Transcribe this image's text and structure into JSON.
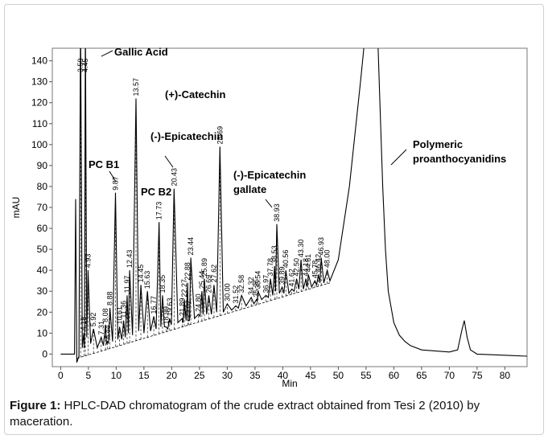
{
  "chart_data": {
    "type": "line",
    "xlabel": "Min",
    "ylabel": "mAU",
    "xlim": [
      -1.5,
      84
    ],
    "ylim": [
      -6,
      146
    ],
    "xticks": [
      0,
      5,
      10,
      15,
      20,
      25,
      30,
      35,
      40,
      45,
      50,
      55,
      60,
      65,
      70,
      75,
      80
    ],
    "yticks": [
      0,
      10,
      20,
      30,
      40,
      50,
      60,
      70,
      80,
      90,
      100,
      110,
      120,
      130,
      140
    ],
    "series": [
      {
        "color": "#000000",
        "x": [
          0,
          2.5,
          2.7,
          2.9,
          3.3,
          3.59,
          3.9,
          4.18,
          4.3,
          4.45,
          4.7,
          4.93,
          5.4,
          5.92,
          6.6,
          7.31,
          7.7,
          8.08,
          8.25,
          8.44,
          8.6,
          8.88,
          9.35,
          9.87,
          10.3,
          10.61,
          11,
          11.36,
          11.65,
          11.97,
          12.2,
          12.43,
          12.95,
          13.57,
          14.05,
          14.45,
          15,
          15.63,
          16.2,
          16.77,
          17.2,
          17.73,
          18.05,
          18.35,
          18.7,
          18.99,
          19.3,
          19.63,
          19.95,
          20.43,
          21.1,
          21.89,
          22.05,
          22.27,
          22.6,
          22.88,
          22.95,
          23.02,
          23.2,
          23.44,
          24.1,
          24.8,
          25.1,
          25.44,
          25.65,
          25.89,
          26.3,
          26.69,
          27.15,
          27.62,
          28.1,
          28.69,
          29.3,
          30,
          30.8,
          31.52,
          32,
          32.58,
          33.4,
          34.32,
          34.8,
          35.26,
          35.4,
          35.54,
          36.2,
          36.97,
          37.4,
          37.78,
          38.2,
          38.53,
          38.7,
          38.93,
          39.4,
          39.89,
          40.2,
          40.56,
          41.1,
          41.62,
          42.05,
          42.5,
          42.9,
          43.3,
          43.7,
          44.18,
          44.4,
          44.61,
          45.2,
          45.78,
          46.1,
          46.42,
          46.7,
          46.93,
          47.4,
          48,
          48.5,
          50,
          52,
          54,
          55.5,
          57,
          57.5,
          58,
          58.5,
          59,
          60,
          61,
          62,
          63,
          65,
          70,
          71.5,
          72.3,
          72.7,
          73.2,
          73.8,
          75,
          84
        ],
        "values": [
          0,
          0,
          74,
          -4,
          -1,
          160,
          3,
          10,
          3,
          160,
          8,
          40,
          5,
          12,
          3,
          8,
          4,
          14,
          5,
          6,
          5,
          22,
          6,
          77,
          7,
          13,
          7,
          16,
          8,
          28,
          10,
          40,
          9,
          122,
          11,
          33,
          10,
          30,
          11,
          18,
          12,
          63,
          13,
          28,
          13,
          13,
          12,
          17,
          14,
          79,
          15,
          17,
          15,
          26,
          16,
          34,
          16,
          16,
          16,
          46,
          17,
          19,
          18,
          30,
          19,
          36,
          19,
          28,
          19,
          33,
          20,
          99,
          20,
          24,
          21,
          23,
          22,
          28,
          23,
          27,
          24,
          26,
          25,
          30,
          26,
          28,
          27,
          36,
          28,
          42,
          30,
          62,
          29,
          32,
          29,
          40,
          29,
          31,
          30,
          36,
          31,
          45,
          31,
          36,
          32,
          38,
          32,
          35,
          33,
          38,
          34,
          46,
          34,
          40,
          35,
          45,
          80,
          130,
          170,
          160,
          120,
          80,
          50,
          30,
          15,
          9,
          6,
          4,
          2,
          1,
          2,
          12,
          16,
          8,
          2,
          0,
          -1
        ]
      }
    ],
    "peaks": {
      "x": [
        3.59,
        4.18,
        4.45,
        4.93,
        5.92,
        7.31,
        8.08,
        8.44,
        8.88,
        9.87,
        10.61,
        11.36,
        11.97,
        12.43,
        13.57,
        14.45,
        15.63,
        16.77,
        17.73,
        18.35,
        18.99,
        19.63,
        20.43,
        21.89,
        22.27,
        22.88,
        23.02,
        23.44,
        24.8,
        25.44,
        25.89,
        26.69,
        27.62,
        28.69,
        30,
        31.52,
        32.58,
        34.32,
        35.26,
        35.54,
        36.97,
        37.78,
        38.53,
        38.93,
        39.89,
        40.56,
        41.62,
        42.5,
        43.3,
        44.18,
        44.61,
        45.78,
        46.42,
        46.93,
        48
      ],
      "values": [
        160,
        10,
        160,
        40,
        12,
        8,
        14,
        6,
        22,
        77,
        13,
        16,
        28,
        40,
        122,
        33,
        30,
        18,
        63,
        28,
        13,
        17,
        79,
        17,
        26,
        34,
        16,
        46,
        19,
        30,
        36,
        28,
        33,
        99,
        24,
        23,
        28,
        27,
        26,
        30,
        28,
        36,
        42,
        62,
        32,
        40,
        31,
        36,
        45,
        36,
        38,
        35,
        38,
        46,
        40
      ],
      "x_labels": [
        "3.59",
        "4.18",
        "4.45",
        "4.93",
        "5.92",
        "7.31",
        "8.08",
        "8.44",
        "8.88",
        "9.87",
        "10.61",
        "11.36",
        "11.97",
        "12.43",
        "13.57",
        "14.45",
        "15.63",
        "16.77",
        "17.73",
        "18.35",
        "18.99",
        "19.63",
        "20.43",
        "21.89",
        "22.27",
        "22.88",
        "23.02",
        "23.44",
        "24.80",
        "25.44",
        "25.89",
        "26.69",
        "27.62",
        "28.69",
        "30.00",
        "31.52",
        "32.58",
        "34.32",
        "35.26",
        "35.54",
        "36.97",
        "37.78",
        "38.53",
        "38.93",
        "39.89",
        "40.56",
        "41.62",
        "42.50",
        "43.30",
        "44.18",
        "44.61",
        "45.78",
        "46.42",
        "46.93",
        "48.00"
      ]
    },
    "baseline": {
      "x": [
        3,
        48.5
      ],
      "values": [
        -2,
        34
      ]
    },
    "annotations": {
      "gallic": "Gallic Acid",
      "catechin": "(+)-Catechin",
      "epicatechin": "(-)-Epicatechin",
      "pcb1": "PC B1",
      "pcb2": "PC B2",
      "ecg": [
        "(-)-Epicatechin",
        "gallate"
      ],
      "polymeric": [
        "Polymeric",
        "proanthocyanidins"
      ]
    }
  },
  "caption": {
    "label": "Figure 1:",
    "text": "HPLC-DAD chromatogram of the crude extract obtained from Tesi 2 (2010) by maceration."
  }
}
